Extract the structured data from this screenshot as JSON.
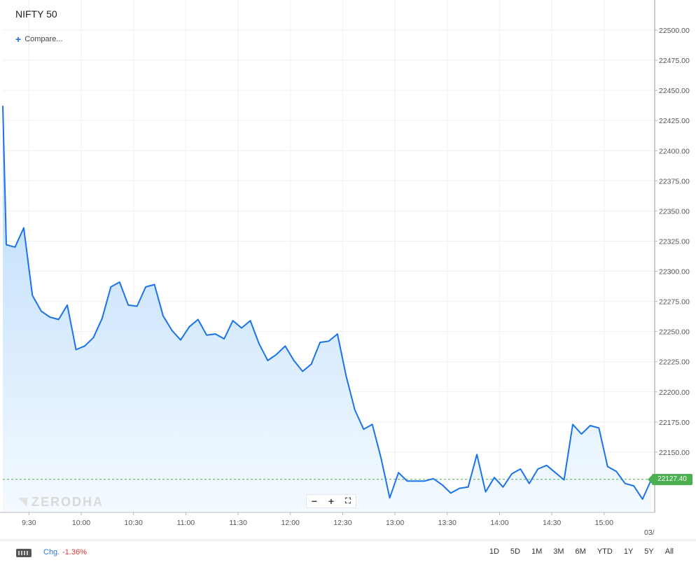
{
  "symbol": "NIFTY 50",
  "compare_label": "Compare...",
  "watermark": "ZERODHA",
  "zoom": {
    "minus": "−",
    "plus": "+",
    "fullscreen": "⛶"
  },
  "price_tag": "22127.40",
  "footer": {
    "chg_label": "Chg.",
    "chg_value": "-1.36%",
    "ranges": [
      "1D",
      "5D",
      "1M",
      "3M",
      "6M",
      "YTD",
      "1Y",
      "5Y",
      "All"
    ]
  },
  "colors": {
    "line": "#1a73e8",
    "fill_top": "#b5d8fb",
    "fill_bottom": "#f4faff",
    "last_price": "#4caf50"
  },
  "chart_data": {
    "type": "area",
    "title": "",
    "xlabel": "",
    "ylabel": "",
    "ylim": [
      22100,
      22525
    ],
    "yticks": [
      22150,
      22175,
      22200,
      22225,
      22250,
      22275,
      22300,
      22325,
      22350,
      22375,
      22400,
      22425,
      22450,
      22475,
      22500
    ],
    "xticks": [
      "9:30",
      "10:00",
      "10:30",
      "11:00",
      "11:30",
      "12:00",
      "12:30",
      "13:00",
      "13:30",
      "14:00",
      "14:30",
      "15:00"
    ],
    "xtick_minutes": [
      570,
      600,
      630,
      660,
      690,
      720,
      750,
      780,
      810,
      840,
      870,
      900
    ],
    "x_range_minutes": [
      555,
      929
    ],
    "xtick_cut_label": "03/",
    "last_price": 22127.4,
    "grid": true,
    "series": [
      {
        "time_minutes": [
          555,
          557,
          562,
          567,
          572,
          577,
          582,
          587,
          592,
          597,
          602,
          607,
          612,
          617,
          622,
          627,
          632,
          637,
          642,
          647,
          652,
          657,
          662,
          667,
          672,
          677,
          682,
          687,
          692,
          697,
          702,
          707,
          712,
          717,
          722,
          727,
          732,
          737,
          742,
          747,
          752,
          757,
          762,
          767,
          772,
          777,
          782,
          787,
          792,
          797,
          802,
          807,
          812,
          817,
          822,
          827,
          832,
          837,
          842,
          847,
          852,
          857,
          862,
          867,
          872,
          877,
          882,
          887,
          892,
          897,
          902,
          907,
          912,
          917,
          922,
          927
        ],
        "values": [
          22437,
          22322,
          22320,
          22336,
          22280,
          22267,
          22262,
          22260,
          22272,
          22235,
          22238,
          22245,
          22261,
          22287,
          22291,
          22272,
          22271,
          22287,
          22289,
          22263,
          22251,
          22243,
          22254,
          22260,
          22247,
          22248,
          22244,
          22259,
          22253,
          22259,
          22240,
          22226,
          22231,
          22238,
          22226,
          22217,
          22223,
          22241,
          22242,
          22248,
          22213,
          22185,
          22169,
          22173,
          22145,
          22112,
          22133,
          22126,
          22126,
          22126,
          22128,
          22123,
          22116,
          22120,
          22121,
          22148,
          22117,
          22129,
          22121,
          22132,
          22136,
          22124,
          22136,
          22139,
          22133,
          22127,
          22173,
          22165,
          22172,
          22170,
          22138,
          22134,
          22124,
          22122,
          22111,
          22127
        ]
      }
    ]
  }
}
